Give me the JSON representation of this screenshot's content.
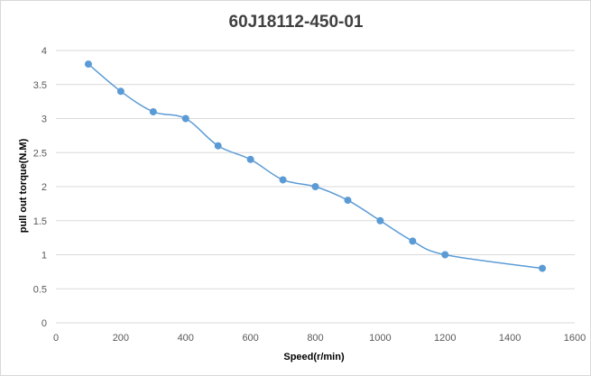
{
  "chart_data": {
    "type": "line",
    "title": "60J18112-450-01",
    "xlabel": "Speed(r/min)",
    "ylabel": "pull out torque(N.M)",
    "xlim": [
      0,
      1600
    ],
    "ylim": [
      0,
      4
    ],
    "x_ticks": [
      0,
      200,
      400,
      600,
      800,
      1000,
      1200,
      1400,
      1600
    ],
    "y_ticks": [
      0,
      0.5,
      1,
      1.5,
      2,
      2.5,
      3,
      3.5,
      4
    ],
    "grid": "horizontal",
    "smooth": true,
    "markers": true,
    "series": [
      {
        "color": "#5b9bd5",
        "x": [
          100,
          200,
          300,
          400,
          500,
          600,
          700,
          800,
          900,
          1000,
          1100,
          1200,
          1500
        ],
        "y": [
          3.8,
          3.4,
          3.1,
          3.0,
          2.6,
          2.4,
          2.1,
          2.0,
          1.8,
          1.5,
          1.2,
          1.0,
          0.8
        ]
      }
    ]
  }
}
